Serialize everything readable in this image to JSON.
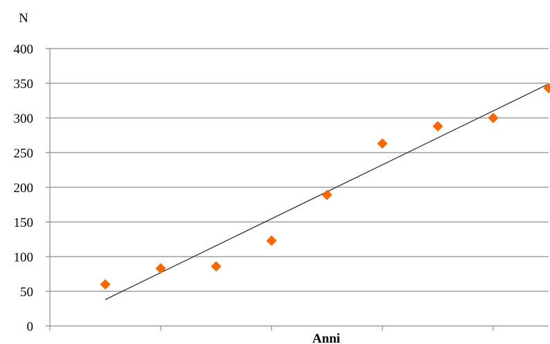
{
  "chart_data": {
    "type": "scatter",
    "ylabel": "N",
    "xlabel": "Anni",
    "x": [
      1,
      2,
      3,
      4,
      5,
      6,
      7,
      8,
      9
    ],
    "values": [
      60,
      83,
      86,
      123,
      189,
      263,
      288,
      300,
      343
    ],
    "trendline": {
      "x_start": 1,
      "y_start": 38,
      "x_end": 9,
      "y_end": 349
    },
    "xlim": [
      0,
      9
    ],
    "ylim": [
      0,
      400
    ],
    "y_ticks": [
      "0",
      "50",
      "100",
      "150",
      "200",
      "250",
      "300",
      "350",
      "400"
    ],
    "grid": "horizontal",
    "colors": {
      "marker": "#FF6600",
      "trendline": "#333333",
      "grid": "#8c8c8c"
    }
  }
}
